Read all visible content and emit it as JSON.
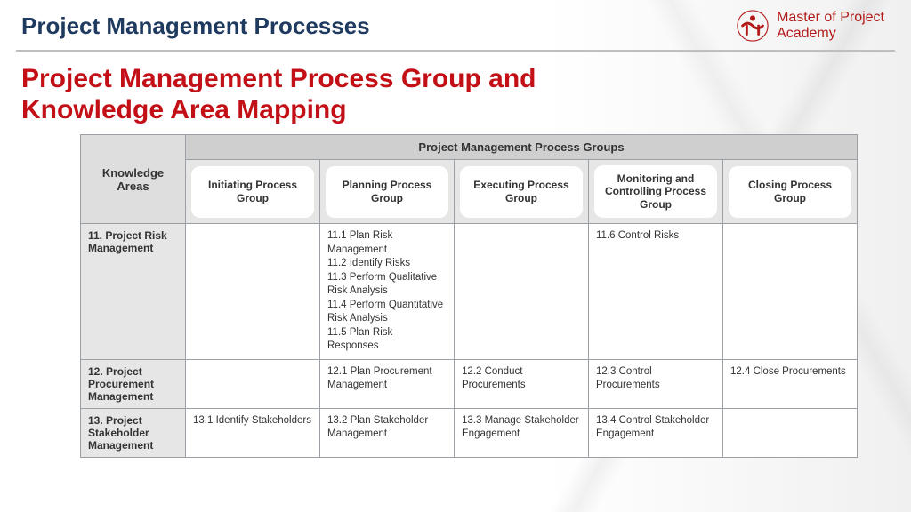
{
  "header": {
    "title": "Project Management Processes",
    "brand_line1": "Master of Project",
    "brand_line2": "Academy"
  },
  "main_title": "Project Management Process Group and Knowledge Area Mapping",
  "table": {
    "super_header": "Project Management Process Groups",
    "knowledge_areas_label": "Knowledge Areas",
    "columns": [
      "Initiating Process Group",
      "Planning Process Group",
      "Executing Process Group",
      "Monitoring and Controlling Process Group",
      "Closing Process Group"
    ],
    "rows": [
      {
        "label": "11. Project Risk Management",
        "cells": [
          "",
          "11.1 Plan Risk Management\n11.2 Identify Risks\n11.3 Perform Qualitative Risk Analysis\n11.4 Perform Quantitative Risk Analysis\n11.5 Plan Risk Responses",
          "",
          "11.6 Control Risks",
          ""
        ]
      },
      {
        "label": "12. Project Procurement Management",
        "cells": [
          "",
          "12.1 Plan Procurement Management",
          "12.2 Conduct Procurements",
          "12.3 Control Procurements",
          "12.4 Close Procurements"
        ]
      },
      {
        "label": "13. Project Stakeholder Management",
        "cells": [
          "13.1 Identify Stakeholders",
          "13.2 Plan Stakeholder Management",
          "13.3 Manage Stakeholder Engagement",
          "13.4 Control Stakeholder Engagement",
          ""
        ]
      }
    ]
  },
  "colors": {
    "header_title": "#1f3a5f",
    "brand": "#b31b1b",
    "main_title": "#c30f16",
    "table_border": "#9aa0a6",
    "header_bg_dark": "#cfcfcf",
    "header_bg_mid": "#dedede",
    "header_bg_light": "#e6e6e6",
    "pill_bg": "#ffffff"
  }
}
